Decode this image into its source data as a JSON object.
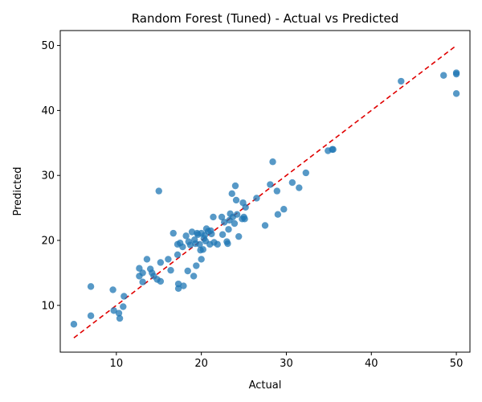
{
  "chart_data": {
    "type": "scatter",
    "title": "Random Forest (Tuned) - Actual vs Predicted",
    "xlabel": "Actual",
    "ylabel": "Predicted",
    "xlim": [
      3.4,
      51.6
    ],
    "ylim": [
      2.8,
      52.3
    ],
    "xticks": [
      10,
      20,
      30,
      40,
      50
    ],
    "yticks": [
      10,
      20,
      30,
      40,
      50
    ],
    "grid": false,
    "point_color": "#1f77b4",
    "reference_line": {
      "style": "dashed",
      "color": "#e00000",
      "from": [
        5,
        5
      ],
      "to": [
        50,
        50
      ]
    },
    "points": [
      [
        5.0,
        7.1
      ],
      [
        7.0,
        8.4
      ],
      [
        7.0,
        12.9
      ],
      [
        9.6,
        12.4
      ],
      [
        9.7,
        9.2
      ],
      [
        10.3,
        8.8
      ],
      [
        10.4,
        8.0
      ],
      [
        10.8,
        9.8
      ],
      [
        10.9,
        11.4
      ],
      [
        12.7,
        15.7
      ],
      [
        12.7,
        14.5
      ],
      [
        13.1,
        13.6
      ],
      [
        13.1,
        15.0
      ],
      [
        13.6,
        17.1
      ],
      [
        14.0,
        15.6
      ],
      [
        14.2,
        15.0
      ],
      [
        14.4,
        14.5
      ],
      [
        14.8,
        14.0
      ],
      [
        15.0,
        27.6
      ],
      [
        15.2,
        13.7
      ],
      [
        15.2,
        16.6
      ],
      [
        16.1,
        17.1
      ],
      [
        16.4,
        15.4
      ],
      [
        16.7,
        21.1
      ],
      [
        17.2,
        17.8
      ],
      [
        17.2,
        19.4
      ],
      [
        17.3,
        13.3
      ],
      [
        17.3,
        12.6
      ],
      [
        17.5,
        19.6
      ],
      [
        17.8,
        19.0
      ],
      [
        17.9,
        13.0
      ],
      [
        18.2,
        20.7
      ],
      [
        18.4,
        15.3
      ],
      [
        18.5,
        19.8
      ],
      [
        18.7,
        19.3
      ],
      [
        18.9,
        21.3
      ],
      [
        19.1,
        14.5
      ],
      [
        19.2,
        20.1
      ],
      [
        19.3,
        19.5
      ],
      [
        19.4,
        16.1
      ],
      [
        19.5,
        21.1
      ],
      [
        19.6,
        20.9
      ],
      [
        19.8,
        19.4
      ],
      [
        19.9,
        18.5
      ],
      [
        20.0,
        17.1
      ],
      [
        20.0,
        21.1
      ],
      [
        20.2,
        18.6
      ],
      [
        20.3,
        20.3
      ],
      [
        20.4,
        20.8
      ],
      [
        20.5,
        19.9
      ],
      [
        20.6,
        21.8
      ],
      [
        20.8,
        21.4
      ],
      [
        21.0,
        19.4
      ],
      [
        21.1,
        21.5
      ],
      [
        21.2,
        21.0
      ],
      [
        21.4,
        23.6
      ],
      [
        21.5,
        19.7
      ],
      [
        21.9,
        19.4
      ],
      [
        22.4,
        23.6
      ],
      [
        22.5,
        20.9
      ],
      [
        22.7,
        22.8
      ],
      [
        23.0,
        19.8
      ],
      [
        23.1,
        19.5
      ],
      [
        23.2,
        21.7
      ],
      [
        23.3,
        23.1
      ],
      [
        23.4,
        24.1
      ],
      [
        23.6,
        27.2
      ],
      [
        23.7,
        23.6
      ],
      [
        23.9,
        22.6
      ],
      [
        24.0,
        28.4
      ],
      [
        24.1,
        26.2
      ],
      [
        24.2,
        24.0
      ],
      [
        24.4,
        20.6
      ],
      [
        24.8,
        23.3
      ],
      [
        24.9,
        25.8
      ],
      [
        25.0,
        23.6
      ],
      [
        25.1,
        23.3
      ],
      [
        25.2,
        25.1
      ],
      [
        26.5,
        26.5
      ],
      [
        27.5,
        22.3
      ],
      [
        28.1,
        28.6
      ],
      [
        28.4,
        32.1
      ],
      [
        28.9,
        27.6
      ],
      [
        29.0,
        24.0
      ],
      [
        29.7,
        24.8
      ],
      [
        30.7,
        28.9
      ],
      [
        31.5,
        28.1
      ],
      [
        32.3,
        30.4
      ],
      [
        34.9,
        33.8
      ],
      [
        35.4,
        34.0
      ],
      [
        35.5,
        34.0
      ],
      [
        43.5,
        44.5
      ],
      [
        48.5,
        45.4
      ],
      [
        50.0,
        45.8
      ],
      [
        50.0,
        45.6
      ],
      [
        50.0,
        42.6
      ]
    ]
  }
}
